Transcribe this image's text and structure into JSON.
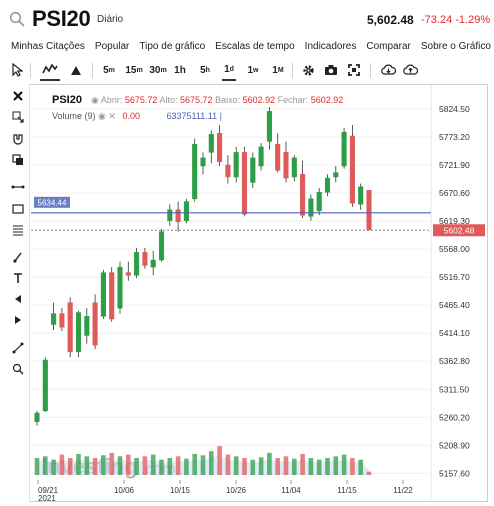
{
  "header": {
    "symbol": "PSI20",
    "period": "Diário",
    "price": "5,602.48",
    "change": "-73.24",
    "change_pct": "-1.29%"
  },
  "menu": [
    "Minhas Citações",
    "Popular",
    "Tipo de gráfico",
    "Escalas de tempo",
    "Indicadores",
    "Comparar",
    "Sobre o Gráfico"
  ],
  "toolbar": {
    "timeframes": [
      {
        "label": "5",
        "sup": "m"
      },
      {
        "label": "15",
        "sup": "m"
      },
      {
        "label": "30",
        "sup": "m"
      },
      {
        "label": "1h",
        "sup": ""
      },
      {
        "label": "5",
        "sup": "h"
      },
      {
        "label": "1",
        "sup": "d"
      },
      {
        "label": "1",
        "sup": "w"
      },
      {
        "label": "1",
        "sup": "M"
      }
    ],
    "active_timeframe": "1d"
  },
  "legend": {
    "symbol": "PSI20",
    "open_label": "Abrir:",
    "open": "5675.72",
    "high_label": "Alto:",
    "high": "5675.72",
    "low_label": "Baixo:",
    "low": "5602.92",
    "close_label": "Fechar:",
    "close": "5602.92",
    "volume_label": "Volume (9)",
    "volume_value": "0.00",
    "volume_ma": "63375111.11"
  },
  "watermark": {
    "brand": "Investing",
    "suffix": ".com"
  },
  "price_tags": {
    "line_label": "5634.44",
    "last_price": "5602.48"
  },
  "colors": {
    "up": "#2e9e46",
    "down": "#e05a5a",
    "line": "#4a63c0",
    "price_tag": "#e05a5a"
  },
  "chart_data": {
    "type": "candlestick",
    "y_ticks": [
      "5824.50",
      "5773.20",
      "5721.90",
      "5670.60",
      "5619.30",
      "5568.00",
      "5516.70",
      "5465.40",
      "5414.10",
      "5362.80",
      "5311.50",
      "5260.20",
      "5208.90",
      "5157.60"
    ],
    "x_ticks": [
      "09/21",
      "10/06",
      "10/15",
      "10/26",
      "11/04",
      "11/15",
      "11/22"
    ],
    "x_year": "2021",
    "ylim": [
      5140,
      5850
    ],
    "horizontal_line": 5634.44,
    "last_price": 5602.48,
    "candles": [
      {
        "o": 5252,
        "h": 5272,
        "l": 5245,
        "c": 5268
      },
      {
        "o": 5272,
        "h": 5370,
        "l": 5270,
        "c": 5365
      },
      {
        "o": 5430,
        "h": 5470,
        "l": 5420,
        "c": 5450
      },
      {
        "o": 5450,
        "h": 5460,
        "l": 5418,
        "c": 5425
      },
      {
        "o": 5470,
        "h": 5480,
        "l": 5370,
        "c": 5380
      },
      {
        "o": 5380,
        "h": 5455,
        "l": 5370,
        "c": 5452
      },
      {
        "o": 5410,
        "h": 5460,
        "l": 5395,
        "c": 5445
      },
      {
        "o": 5470,
        "h": 5485,
        "l": 5385,
        "c": 5392
      },
      {
        "o": 5445,
        "h": 5530,
        "l": 5440,
        "c": 5525
      },
      {
        "o": 5525,
        "h": 5535,
        "l": 5435,
        "c": 5440
      },
      {
        "o": 5460,
        "h": 5545,
        "l": 5450,
        "c": 5535
      },
      {
        "o": 5525,
        "h": 5545,
        "l": 5510,
        "c": 5520
      },
      {
        "o": 5520,
        "h": 5570,
        "l": 5515,
        "c": 5562
      },
      {
        "o": 5562,
        "h": 5570,
        "l": 5532,
        "c": 5538
      },
      {
        "o": 5535,
        "h": 5565,
        "l": 5520,
        "c": 5548
      },
      {
        "o": 5548,
        "h": 5605,
        "l": 5545,
        "c": 5600
      },
      {
        "o": 5620,
        "h": 5650,
        "l": 5610,
        "c": 5640
      },
      {
        "o": 5640,
        "h": 5655,
        "l": 5600,
        "c": 5618
      },
      {
        "o": 5620,
        "h": 5660,
        "l": 5615,
        "c": 5655
      },
      {
        "o": 5660,
        "h": 5770,
        "l": 5655,
        "c": 5760
      },
      {
        "o": 5720,
        "h": 5745,
        "l": 5705,
        "c": 5735
      },
      {
        "o": 5745,
        "h": 5785,
        "l": 5725,
        "c": 5778
      },
      {
        "o": 5780,
        "h": 5795,
        "l": 5720,
        "c": 5728
      },
      {
        "o": 5722,
        "h": 5740,
        "l": 5688,
        "c": 5700
      },
      {
        "o": 5700,
        "h": 5755,
        "l": 5690,
        "c": 5745
      },
      {
        "o": 5745,
        "h": 5755,
        "l": 5628,
        "c": 5632
      },
      {
        "o": 5690,
        "h": 5745,
        "l": 5680,
        "c": 5735
      },
      {
        "o": 5720,
        "h": 5762,
        "l": 5712,
        "c": 5755
      },
      {
        "o": 5765,
        "h": 5828,
        "l": 5750,
        "c": 5820
      },
      {
        "o": 5760,
        "h": 5780,
        "l": 5708,
        "c": 5712
      },
      {
        "o": 5745,
        "h": 5765,
        "l": 5690,
        "c": 5698
      },
      {
        "o": 5700,
        "h": 5740,
        "l": 5692,
        "c": 5735
      },
      {
        "o": 5705,
        "h": 5730,
        "l": 5625,
        "c": 5630
      },
      {
        "o": 5628,
        "h": 5668,
        "l": 5620,
        "c": 5660
      },
      {
        "o": 5638,
        "h": 5680,
        "l": 5630,
        "c": 5672
      },
      {
        "o": 5672,
        "h": 5705,
        "l": 5665,
        "c": 5698
      },
      {
        "o": 5700,
        "h": 5720,
        "l": 5690,
        "c": 5708
      },
      {
        "o": 5720,
        "h": 5790,
        "l": 5715,
        "c": 5782
      },
      {
        "o": 5775,
        "h": 5795,
        "l": 5645,
        "c": 5652
      },
      {
        "o": 5650,
        "h": 5688,
        "l": 5640,
        "c": 5682
      },
      {
        "o": 5675.72,
        "h": 5675.72,
        "l": 5602.92,
        "c": 5602.92
      }
    ],
    "volumes": [
      0.5,
      0.55,
      0.45,
      0.6,
      0.5,
      0.62,
      0.55,
      0.5,
      0.58,
      0.65,
      0.55,
      0.6,
      0.5,
      0.55,
      0.6,
      0.45,
      0.5,
      0.55,
      0.48,
      0.62,
      0.58,
      0.7,
      0.85,
      0.6,
      0.55,
      0.5,
      0.45,
      0.52,
      0.65,
      0.5,
      0.55,
      0.48,
      0.62,
      0.5,
      0.45,
      0.5,
      0.55,
      0.6,
      0.5,
      0.45,
      0.1
    ]
  }
}
